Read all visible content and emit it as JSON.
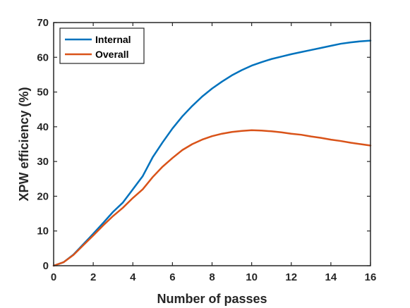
{
  "chart_data": {
    "type": "line",
    "title": "",
    "xlabel": "Number of passes",
    "ylabel": "XPW efficiency (%)",
    "xlim": [
      0,
      16
    ],
    "ylim": [
      0,
      70
    ],
    "xticks": [
      "0",
      "2",
      "4",
      "6",
      "8",
      "10",
      "12",
      "14",
      "16"
    ],
    "yticks": [
      "0",
      "10",
      "20",
      "30",
      "40",
      "50",
      "60",
      "70"
    ],
    "grid": false,
    "legend_position": "top-left",
    "series": [
      {
        "name": "Internal",
        "color": "#0072BD",
        "points": [
          [
            0,
            0
          ],
          [
            0.5,
            1
          ],
          [
            1,
            3.2
          ],
          [
            1.5,
            6.2
          ],
          [
            2,
            9.2
          ],
          [
            2.5,
            12.3
          ],
          [
            3,
            15.5
          ],
          [
            3.5,
            18.2
          ],
          [
            4,
            22
          ],
          [
            4.5,
            25.8
          ],
          [
            5,
            31.2
          ],
          [
            5.5,
            35.5
          ],
          [
            6,
            39.5
          ],
          [
            6.5,
            43
          ],
          [
            7,
            46
          ],
          [
            7.5,
            48.7
          ],
          [
            8,
            51
          ],
          [
            8.5,
            53
          ],
          [
            9,
            54.8
          ],
          [
            9.5,
            56.3
          ],
          [
            10,
            57.6
          ],
          [
            10.5,
            58.6
          ],
          [
            11,
            59.5
          ],
          [
            11.5,
            60.2
          ],
          [
            12,
            60.9
          ],
          [
            12.5,
            61.5
          ],
          [
            13,
            62.1
          ],
          [
            13.5,
            62.7
          ],
          [
            14,
            63.3
          ],
          [
            14.5,
            63.9
          ],
          [
            15,
            64.3
          ],
          [
            15.5,
            64.6
          ],
          [
            16,
            64.8
          ]
        ]
      },
      {
        "name": "Overall",
        "color": "#D95319",
        "points": [
          [
            0,
            0
          ],
          [
            0.5,
            1
          ],
          [
            1,
            3.1
          ],
          [
            1.5,
            5.9
          ],
          [
            2,
            8.7
          ],
          [
            2.5,
            11.6
          ],
          [
            3,
            14.3
          ],
          [
            3.5,
            16.7
          ],
          [
            4,
            19.5
          ],
          [
            4.5,
            22
          ],
          [
            5,
            25.5
          ],
          [
            5.5,
            28.5
          ],
          [
            6,
            31
          ],
          [
            6.5,
            33.3
          ],
          [
            7,
            35
          ],
          [
            7.5,
            36.3
          ],
          [
            8,
            37.3
          ],
          [
            8.5,
            38
          ],
          [
            9,
            38.5
          ],
          [
            9.5,
            38.8
          ],
          [
            10,
            39
          ],
          [
            10.5,
            38.9
          ],
          [
            11,
            38.7
          ],
          [
            11.5,
            38.4
          ],
          [
            12,
            38
          ],
          [
            12.5,
            37.7
          ],
          [
            13,
            37.2
          ],
          [
            13.5,
            36.8
          ],
          [
            14,
            36.3
          ],
          [
            14.5,
            35.9
          ],
          [
            15,
            35.4
          ],
          [
            15.5,
            35
          ],
          [
            16,
            34.6
          ]
        ]
      }
    ]
  }
}
